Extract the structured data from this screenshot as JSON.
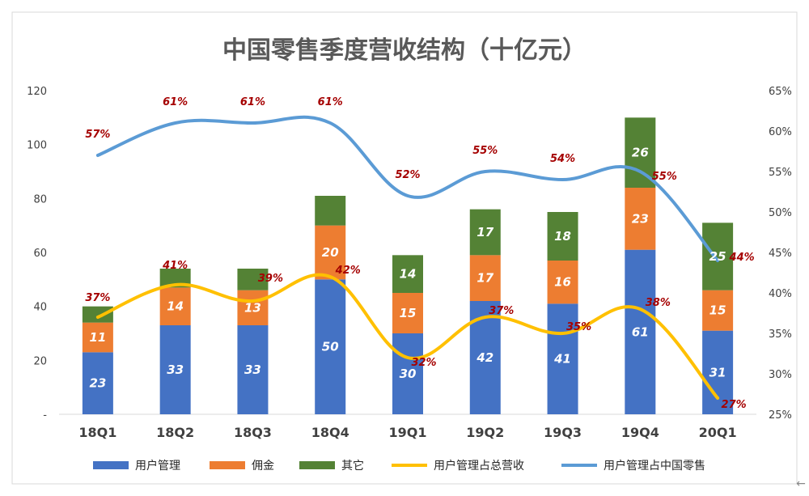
{
  "chart_data": {
    "type": "bar",
    "title": "中国零售季度营收结构（十亿元）",
    "categories": [
      "18Q1",
      "18Q2",
      "18Q3",
      "18Q4",
      "19Q1",
      "19Q2",
      "19Q3",
      "19Q4",
      "20Q1"
    ],
    "series": [
      {
        "name": "用户管理",
        "type": "bar",
        "axis": "left",
        "color": "#4472c4",
        "values": [
          23,
          33,
          33,
          50,
          30,
          42,
          41,
          61,
          31
        ]
      },
      {
        "name": "佣金",
        "type": "bar",
        "axis": "left",
        "color": "#ed7d31",
        "values": [
          11,
          14,
          13,
          20,
          15,
          17,
          16,
          23,
          15
        ]
      },
      {
        "name": "其它",
        "type": "bar",
        "axis": "left",
        "color": "#548235",
        "values": [
          6,
          7,
          8,
          11,
          14,
          17,
          18,
          26,
          25
        ]
      },
      {
        "name": "用户管理占总营收",
        "type": "line",
        "axis": "right",
        "color": "#ffc000",
        "values": [
          37,
          41,
          39,
          42,
          32,
          37,
          35,
          38,
          27
        ],
        "labels": [
          "37%",
          "41%",
          "39%",
          "42%",
          "32%",
          "37%",
          "35%",
          "38%",
          "27%"
        ]
      },
      {
        "name": "用户管理占中国零售",
        "type": "line",
        "axis": "right",
        "color": "#5b9bd5",
        "values": [
          57,
          61,
          61,
          61,
          52,
          55,
          54,
          55,
          44
        ],
        "labels": [
          "57%",
          "61%",
          "61%",
          "61%",
          "52%",
          "55%",
          "54%",
          "55%",
          "44%"
        ]
      }
    ],
    "bar_value_labels": {
      "用户管理": [
        "23",
        "33",
        "33",
        "50",
        "30",
        "42",
        "41",
        "61",
        "31"
      ],
      "佣金": [
        "11",
        "14",
        "13",
        "20",
        "15",
        "17",
        "16",
        "23",
        "15"
      ],
      "其它": [
        "",
        "",
        "",
        "",
        "14",
        "17",
        "18",
        "26",
        "25"
      ]
    },
    "y_left": {
      "ylim": [
        0,
        120
      ],
      "ticks": [
        "-",
        "20",
        "40",
        "60",
        "80",
        "100",
        "120"
      ]
    },
    "y_right": {
      "ylim": [
        25,
        65
      ],
      "ticks": [
        "25%",
        "30%",
        "35%",
        "40%",
        "45%",
        "50%",
        "55%",
        "60%",
        "65%"
      ]
    },
    "grid": false,
    "legend": "bottom"
  },
  "colors": {
    "background": "#ffffff",
    "frame": "#d9d9d9",
    "title": "#595959",
    "line_label": "#a50000"
  }
}
